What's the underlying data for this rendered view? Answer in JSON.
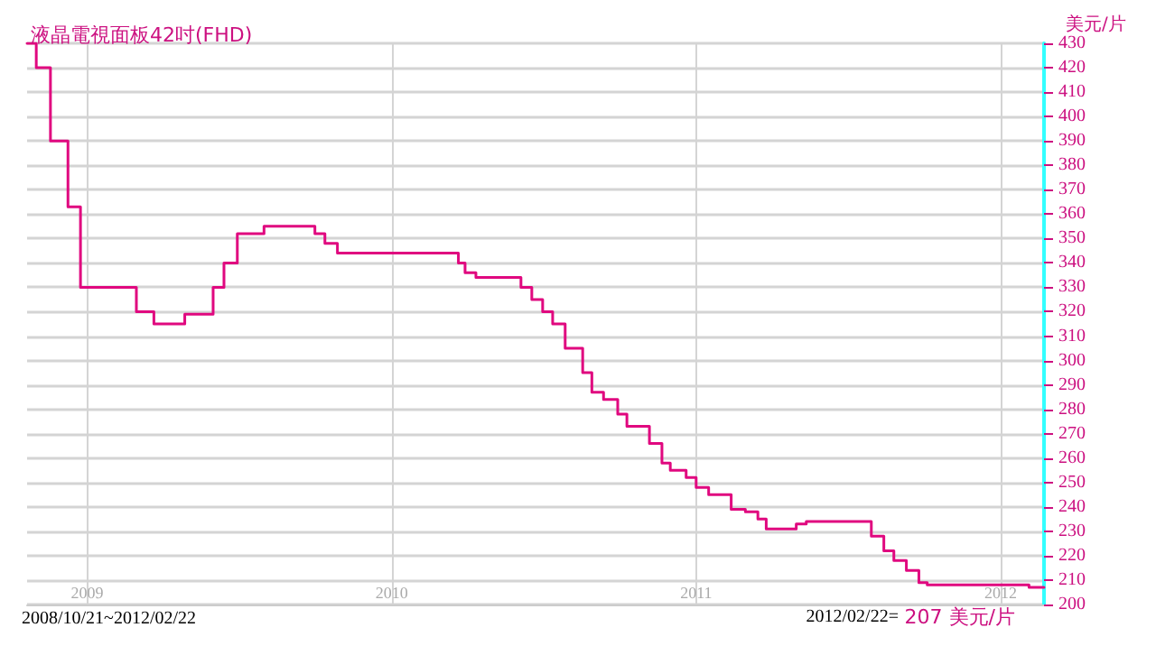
{
  "chart_data": {
    "type": "step",
    "title": "液晶電視面板42吋(FHD)",
    "ylabel": "美元/片",
    "annotations": [
      "2008/10/21~2012/02/22",
      "2012/02/22=",
      "207 美元/片"
    ],
    "x": [
      "2008-10-21",
      "2008-11-01",
      "2008-11-18",
      "2008-12-09",
      "2008-12-24",
      "2009-03-01",
      "2009-03-22",
      "2009-04-28",
      "2009-06-01",
      "2009-06-14",
      "2009-06-30",
      "2009-08-01",
      "2009-10-01",
      "2009-10-13",
      "2009-10-28",
      "2010-03-22",
      "2010-03-30",
      "2010-04-12",
      "2010-06-05",
      "2010-06-18",
      "2010-07-01",
      "2010-07-13",
      "2010-07-28",
      "2010-08-18",
      "2010-08-29",
      "2010-09-12",
      "2010-09-29",
      "2010-10-10",
      "2010-11-06",
      "2010-11-21",
      "2010-12-01",
      "2010-12-20",
      "2011-01-01",
      "2011-01-16",
      "2011-02-12",
      "2011-03-01",
      "2011-03-16",
      "2011-03-26",
      "2011-05-01",
      "2011-05-13",
      "2011-07-30",
      "2011-08-14",
      "2011-08-26",
      "2011-09-10",
      "2011-09-25",
      "2011-10-05",
      "2012-02-04",
      "2012-02-22"
    ],
    "series": [
      {
        "color": "#e0087f",
        "values": [
          430,
          420,
          390,
          363,
          330,
          320,
          315,
          319,
          330,
          340,
          352,
          355,
          352,
          348,
          344,
          340,
          336,
          334,
          330,
          325,
          320,
          315,
          305,
          295,
          287,
          284,
          278,
          273,
          266,
          258,
          255,
          252,
          248,
          245,
          239,
          238,
          235,
          231,
          233,
          234,
          228,
          222,
          218,
          214,
          209,
          208,
          207,
          207
        ]
      }
    ],
    "xlim": [
      "2008-10-21",
      "2012-02-22"
    ],
    "xticks": [
      {
        "value": "2009-01-01",
        "label": "2009"
      },
      {
        "value": "2010-01-01",
        "label": "2010"
      },
      {
        "value": "2011-01-01",
        "label": "2011"
      },
      {
        "value": "2012-01-01",
        "label": "2012"
      }
    ],
    "ylim": [
      200,
      430
    ],
    "yticks": [
      200,
      210,
      220,
      230,
      240,
      250,
      260,
      270,
      280,
      290,
      300,
      310,
      320,
      330,
      340,
      350,
      360,
      370,
      380,
      390,
      400,
      410,
      420,
      430
    ],
    "grid": true,
    "marker": "none",
    "line_style": "solid"
  }
}
